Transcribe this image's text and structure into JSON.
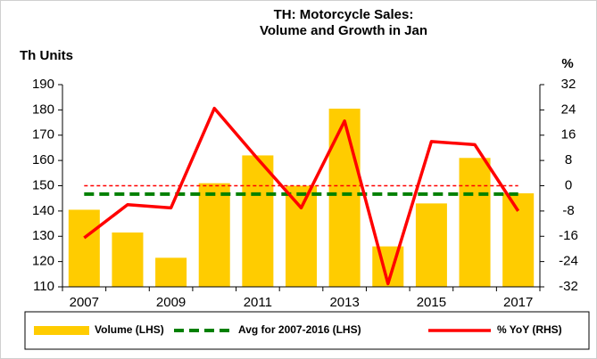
{
  "chart_data": {
    "type": "bar_line",
    "title": [
      "TH: Motorcycle Sales:",
      "Volume and Growth in Jan"
    ],
    "y_label": "Th Units",
    "y2_label": "%",
    "categories": [
      "2007",
      null,
      "2009",
      null,
      "2011",
      null,
      "2013",
      null,
      "2015",
      null,
      "2017"
    ],
    "series": [
      {
        "name": "Volume (LHS)",
        "color": "#ffcc00",
        "kind": "bar",
        "values": [
          140.5,
          131.5,
          121.5,
          151,
          162,
          150,
          180.5,
          126,
          143,
          161,
          147
        ]
      },
      {
        "name": "Avg for 2007-2016 (LHS)",
        "color": "#008000",
        "kind": "hline",
        "value": 146.7
      },
      {
        "name": "% YoY (RHS)",
        "color": "#ff0000",
        "kind": "line",
        "axis": "y2",
        "values": [
          -16.5,
          -6,
          -7,
          24.5,
          8.5,
          -7,
          20.5,
          -31,
          14,
          13,
          -8
        ]
      }
    ],
    "ylim": [
      110,
      190
    ],
    "yticks": [
      110,
      120,
      130,
      140,
      150,
      160,
      170,
      180,
      190
    ],
    "y2lim": [
      -32,
      32
    ],
    "y2ticks": [
      -32,
      -24,
      -16,
      -8,
      0,
      8,
      16,
      24,
      32
    ],
    "legend": "bottom"
  }
}
